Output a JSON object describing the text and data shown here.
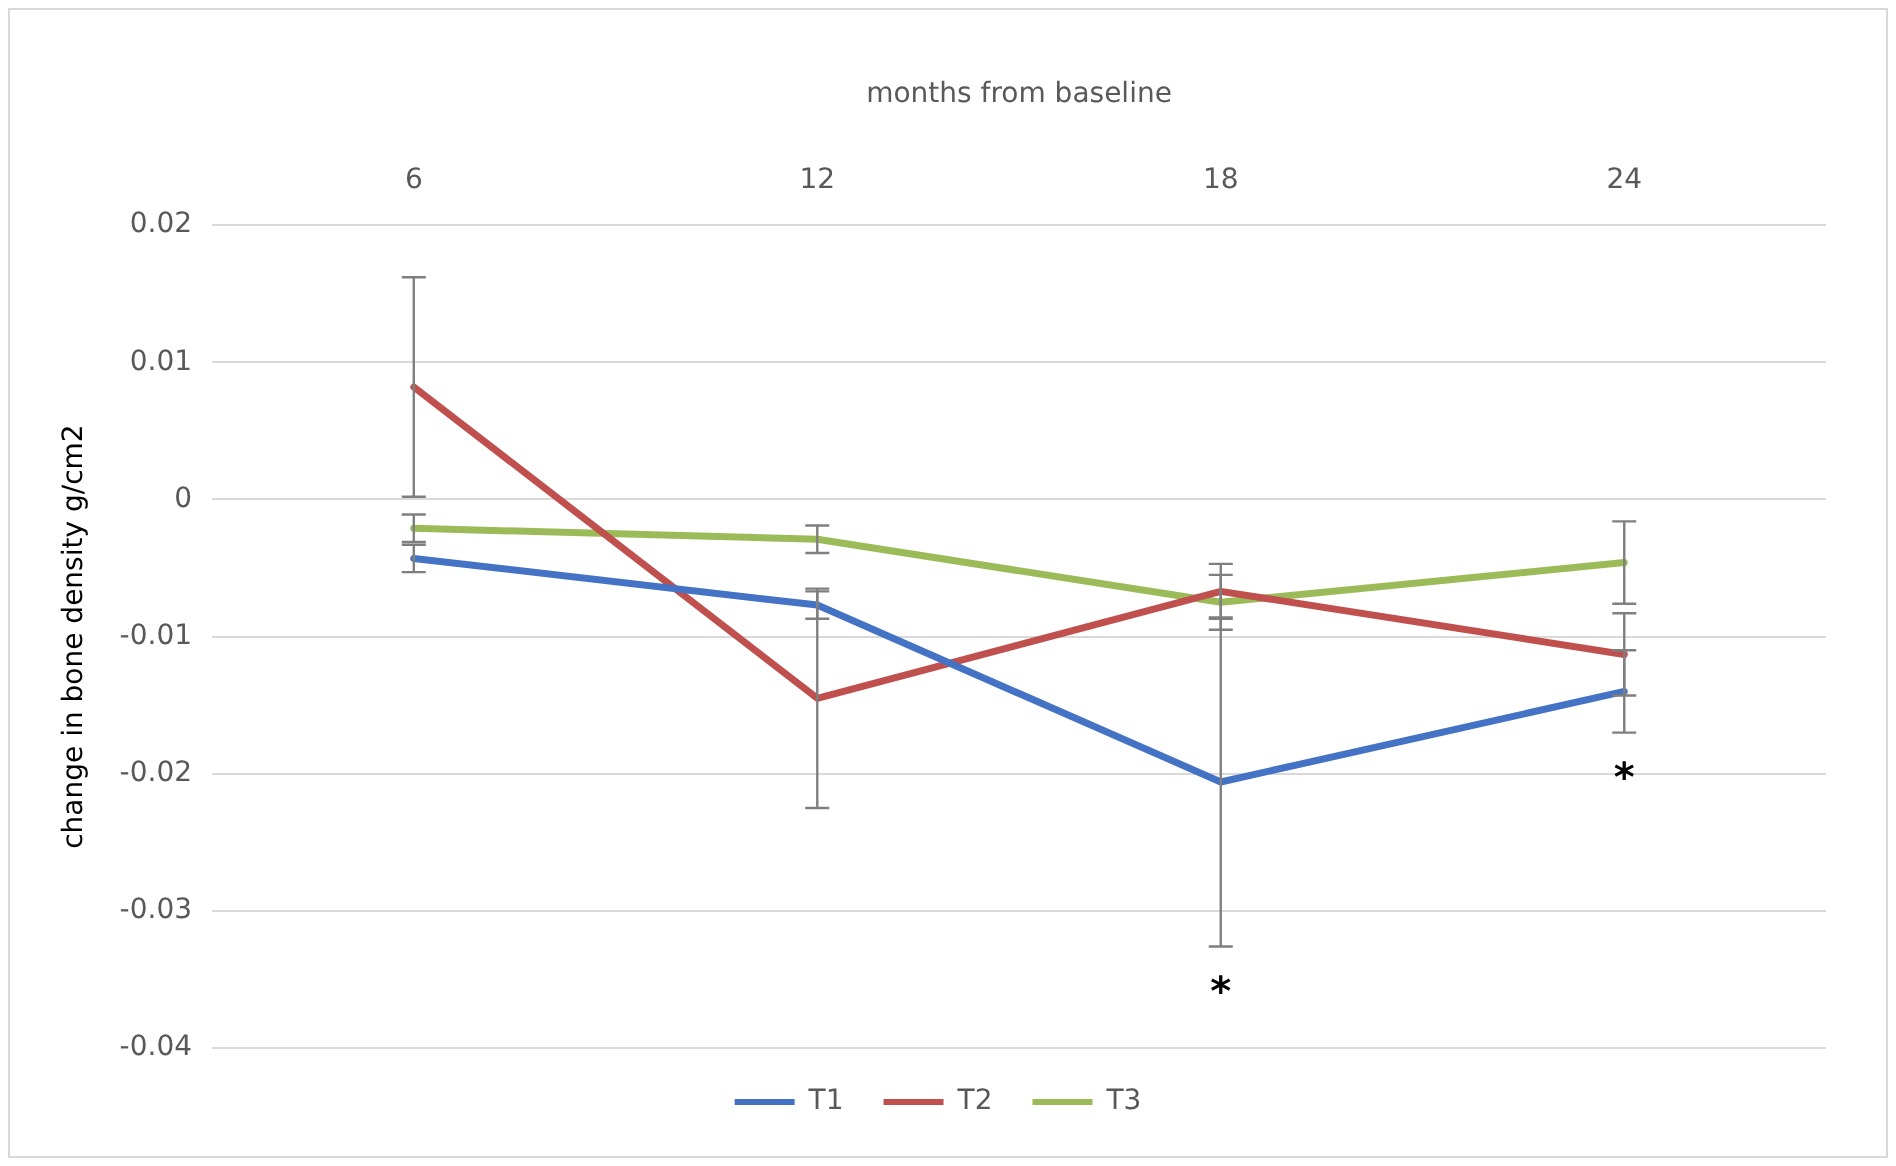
{
  "chart_data": {
    "type": "line",
    "xlabel": "months from baseline",
    "ylabel": "change in bone density g/cm2",
    "categories": [
      "6",
      "12",
      "18",
      "24"
    ],
    "series": [
      {
        "name": "T1",
        "color": "#4472c4",
        "values": [
          -0.0043,
          -0.0077,
          -0.0206,
          -0.014
        ],
        "errors": [
          0.001,
          0.001,
          0.012,
          0.003
        ]
      },
      {
        "name": "T2",
        "color": "#c0504d",
        "values": [
          0.0082,
          -0.0145,
          -0.0067,
          -0.0113
        ],
        "errors": [
          0.008,
          0.008,
          0.002,
          0.003
        ]
      },
      {
        "name": "T3",
        "color": "#9bbb59",
        "values": [
          -0.0021,
          -0.0029,
          -0.0075,
          -0.0046
        ],
        "errors": [
          0.001,
          0.001,
          0.002,
          0.003
        ]
      }
    ],
    "ylim": [
      -0.04,
      0.02
    ],
    "yticks": [
      -0.04,
      -0.03,
      -0.02,
      -0.01,
      0,
      0.01,
      0.02
    ],
    "grid": "y",
    "legend": "bottom",
    "line_style": "solid",
    "annotations": [
      "*",
      "*"
    ]
  }
}
